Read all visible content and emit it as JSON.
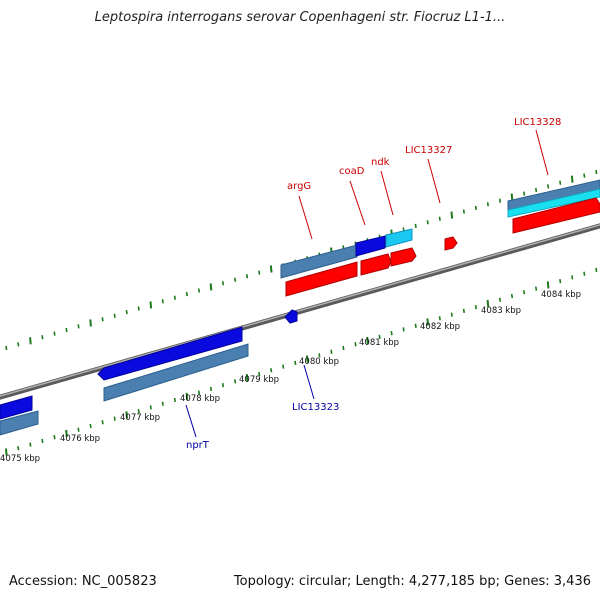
{
  "title": "Leptospira interrogans serovar Copenhageni str. Fiocruz L1-1...",
  "footer": {
    "accession": "Accession: NC_005823",
    "topology": "Topology: circular; Length: 4,277,185 bp; Genes: 3,436"
  },
  "colors": {
    "backbone": "#8a8a8a",
    "tick": "#1c7a1c",
    "gene_blue": "#0a0adf",
    "gene_steel": "#4a7fb0",
    "gene_cyan": "#18e0f0",
    "gene_red": "#ff0000",
    "label_red": "#cc0000",
    "label_blue": "#0000aa"
  },
  "scale_labels": [
    "4075 kbp",
    "4076 kbp",
    "4077 kbp",
    "4078 kbp",
    "4079 kbp",
    "4080 kbp",
    "4081 kbp",
    "4082 kbp",
    "4083 kbp",
    "4084 kbp"
  ],
  "gene_labels": [
    {
      "name": "argG",
      "strand": "forward"
    },
    {
      "name": "coaD",
      "strand": "forward"
    },
    {
      "name": "ndk",
      "strand": "forward"
    },
    {
      "name": "LIC13327",
      "strand": "forward"
    },
    {
      "name": "LIC13328",
      "strand": "forward"
    },
    {
      "name": "LIC13323",
      "strand": "reverse"
    },
    {
      "name": "nprT",
      "strand": "reverse"
    }
  ]
}
